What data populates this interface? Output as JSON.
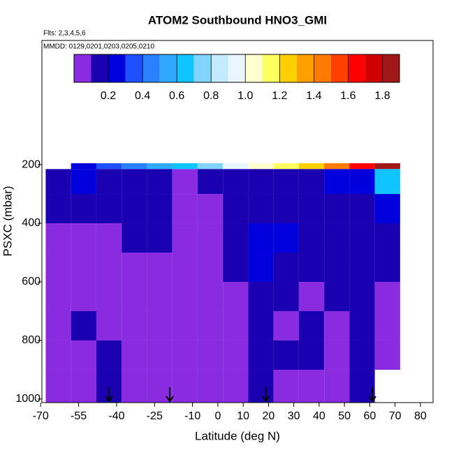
{
  "chart_data": {
    "type": "heatmap",
    "title": "ATOM2 Southbound HNO3_GMI",
    "subtitle": "Flts: 2,3,4,5,6",
    "annotation": "MMDD: 0129,0201,0203,0205,0210",
    "xlabel": "Latitude (deg N)",
    "ylabel": "PSXC (mbar)",
    "xlim": [
      -69.5,
      85
    ],
    "ylim": [
      1012,
      -224
    ],
    "xticks": [
      -70,
      -55,
      -40,
      -25,
      -10,
      0,
      10,
      20,
      30,
      40,
      50,
      60,
      70,
      80
    ],
    "yticks": [
      200,
      400,
      600,
      800,
      1000
    ],
    "lat_edges": [
      -68,
      -58,
      -48,
      -38,
      -28,
      -18,
      -8,
      2,
      12,
      22,
      32,
      42,
      52,
      62,
      72
    ],
    "p_edges": [
      195,
      215,
      300,
      400,
      500,
      600,
      700,
      800,
      900,
      1012
    ],
    "values": [
      [
        null,
        0.25,
        0.3,
        0.4,
        0.5,
        0.6,
        0.75,
        0.9,
        1.0,
        1.1,
        1.25,
        1.4,
        1.6,
        1.8
      ],
      [
        0.15,
        0.2,
        0.15,
        0.1,
        0.1,
        0.08,
        0.1,
        0.12,
        0.15,
        0.15,
        0.15,
        0.2,
        0.2,
        0.6
      ],
      [
        0.15,
        0.12,
        0.12,
        0.15,
        0.15,
        0.05,
        0.05,
        0.1,
        0.15,
        0.1,
        0.12,
        0.12,
        0.15,
        0.25
      ],
      [
        0.08,
        0.08,
        0.08,
        0.1,
        0.1,
        0.05,
        0.05,
        0.1,
        0.2,
        0.2,
        0.12,
        0.1,
        0.12,
        0.12
      ],
      [
        0.06,
        0.08,
        0.06,
        0.06,
        0.05,
        0.05,
        0.05,
        0.1,
        0.2,
        0.15,
        0.1,
        0.1,
        0.1,
        0.1
      ],
      [
        0.05,
        0.06,
        0.06,
        0.05,
        0.05,
        0.05,
        0.05,
        0.06,
        0.12,
        0.1,
        0.08,
        0.1,
        0.12,
        0.06
      ],
      [
        0.05,
        0.1,
        0.06,
        0.08,
        0.05,
        0.05,
        0.05,
        0.08,
        0.15,
        0.08,
        0.1,
        0.08,
        0.15,
        0.05
      ],
      [
        0.05,
        0.06,
        0.1,
        0.08,
        0.06,
        0.05,
        0.05,
        0.06,
        0.12,
        0.1,
        0.1,
        0.08,
        0.12,
        0.05
      ],
      [
        0.06,
        0.06,
        0.15,
        0.06,
        0.06,
        0.05,
        0.05,
        0.06,
        0.1,
        0.06,
        0.06,
        0.06,
        0.1,
        null
      ]
    ],
    "arrows_lat": [
      -43,
      -19,
      19,
      61
    ],
    "colorbar": {
      "lim": [
        0,
        1.9
      ],
      "breaks": [
        0,
        0.1,
        0.2,
        0.3,
        0.4,
        0.5,
        0.6,
        0.7,
        0.8,
        0.9,
        1.0,
        1.1,
        1.2,
        1.3,
        1.4,
        1.5,
        1.6,
        1.7,
        1.8,
        1.9
      ],
      "colors": [
        "#8a2be2",
        "#1a00b0",
        "#0000dd",
        "#1e50ff",
        "#2a80ff",
        "#30a8ff",
        "#10c4ff",
        "#80d4ff",
        "#c4eaff",
        "#eaf6ff",
        "#ffffd0",
        "#ffff60",
        "#ffd000",
        "#ffa000",
        "#ff7a00",
        "#ff4000",
        "#ff0000",
        "#d00000",
        "#a01818"
      ],
      "ticks": [
        0.2,
        0.4,
        0.6,
        0.8,
        {
          "value": 1.0,
          "label": "1.0"
        },
        1.2,
        1.4,
        1.6,
        1.8
      ]
    }
  }
}
